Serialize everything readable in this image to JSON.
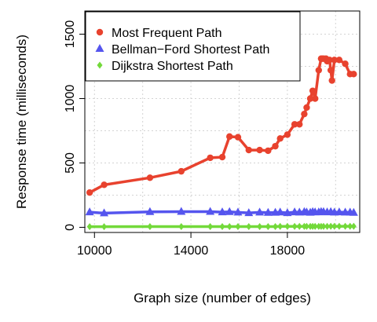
{
  "chart_data": {
    "type": "line",
    "xlabel": "Graph size (number of edges)",
    "ylabel": "Response time (milliseconds)",
    "xlim": [
      9600,
      21000
    ],
    "ylim": [
      -40,
      1680
    ],
    "xticks": [
      10000,
      14000,
      18000
    ],
    "yticks": [
      0,
      500,
      1000,
      1500
    ],
    "grid": true,
    "legend_position": "top-left",
    "series": [
      {
        "name": "Most Frequent Path",
        "color": "#e8422e",
        "marker": "circle",
        "x": [
          9800,
          10400,
          12300,
          13600,
          14800,
          15300,
          15600,
          15950,
          16400,
          16850,
          17200,
          17500,
          17700,
          18000,
          18300,
          18500,
          18700,
          18800,
          18950,
          19050,
          19150,
          19300,
          19400,
          19450,
          19500,
          19600,
          19650,
          19750,
          19800,
          19850,
          19950,
          20150,
          20400,
          20600,
          20750
        ],
        "values": [
          270,
          330,
          385,
          435,
          540,
          545,
          705,
          700,
          600,
          600,
          595,
          630,
          690,
          720,
          800,
          800,
          880,
          930,
          1000,
          1060,
          1000,
          1220,
          1310,
          1310,
          1310,
          1310,
          1290,
          1300,
          1220,
          1140,
          1300,
          1300,
          1270,
          1190,
          1190
        ]
      },
      {
        "name": "Bellman−Ford Shortest Path",
        "color": "#5555ee",
        "marker": "triangle",
        "x": [
          9800,
          10400,
          12300,
          13600,
          14800,
          15300,
          15600,
          15950,
          16400,
          16850,
          17200,
          17500,
          17700,
          18000,
          18300,
          18500,
          18700,
          18800,
          18950,
          19050,
          19150,
          19300,
          19400,
          19500,
          19650,
          19800,
          19950,
          20150,
          20400,
          20600,
          20750
        ],
        "values": [
          118,
          110,
          120,
          122,
          122,
          118,
          120,
          116,
          112,
          116,
          114,
          115,
          117,
          112,
          118,
          116,
          120,
          117,
          115,
          120,
          118,
          118,
          121,
          120,
          118,
          120,
          116,
          118,
          116,
          116,
          114
        ]
      },
      {
        "name": "Dijkstra Shortest Path",
        "color": "#73d93a",
        "marker": "diamond",
        "x": [
          9800,
          10400,
          12300,
          13600,
          14800,
          15300,
          15600,
          15950,
          16400,
          16850,
          17200,
          17500,
          17700,
          18000,
          18300,
          18500,
          18700,
          18800,
          18950,
          19050,
          19150,
          19300,
          19400,
          19500,
          19650,
          19800,
          19950,
          20150,
          20400,
          20600,
          20750
        ],
        "values": [
          5,
          5,
          6,
          6,
          6,
          6,
          6,
          6,
          6,
          6,
          6,
          6,
          7,
          7,
          7,
          7,
          7,
          7,
          7,
          7,
          7,
          7,
          7,
          7,
          7,
          8,
          8,
          8,
          8,
          8,
          8
        ]
      }
    ]
  }
}
